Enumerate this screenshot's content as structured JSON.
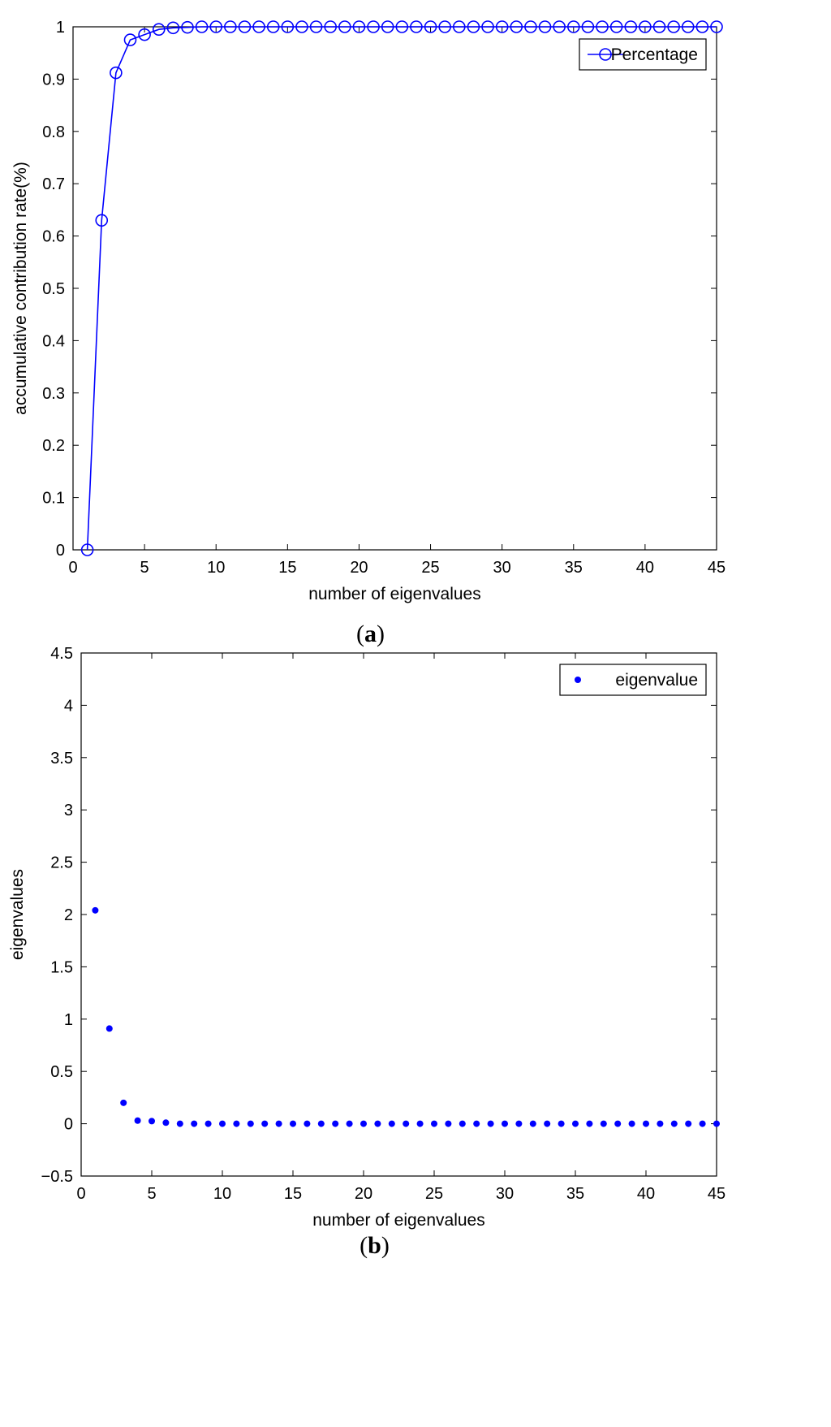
{
  "chart_data": [
    {
      "type": "line",
      "panel_label": "(a)",
      "xlabel": "number of eigenvalues",
      "ylabel": "accumulative contribution rate(%)",
      "xlim": [
        0,
        45
      ],
      "ylim": [
        0,
        1
      ],
      "xticks": [
        0,
        5,
        10,
        15,
        20,
        25,
        30,
        35,
        40,
        45
      ],
      "yticks": [
        0,
        0.1,
        0.2,
        0.3,
        0.4,
        0.5,
        0.6,
        0.7,
        0.8,
        0.9,
        1
      ],
      "grid": false,
      "legend_position": "top-right",
      "marker": "circle",
      "color": "#0000ff",
      "series": [
        {
          "name": "Percentage",
          "x": [
            1,
            2,
            3,
            4,
            5,
            6,
            7,
            8,
            9,
            10,
            11,
            12,
            13,
            14,
            15,
            16,
            17,
            18,
            19,
            20,
            21,
            22,
            23,
            24,
            25,
            26,
            27,
            28,
            29,
            30,
            31,
            32,
            33,
            34,
            35,
            36,
            37,
            38,
            39,
            40,
            41,
            42,
            43,
            44,
            45
          ],
          "values": [
            0,
            0.63,
            0.912,
            0.975,
            0.985,
            0.995,
            0.998,
            0.999,
            1,
            1,
            1,
            1,
            1,
            1,
            1,
            1,
            1,
            1,
            1,
            1,
            1,
            1,
            1,
            1,
            1,
            1,
            1,
            1,
            1,
            1,
            1,
            1,
            1,
            1,
            1,
            1,
            1,
            1,
            1,
            1,
            1,
            1,
            1,
            1,
            1
          ]
        }
      ]
    },
    {
      "type": "scatter",
      "panel_label": "(b)",
      "xlabel": "number of eigenvalues",
      "ylabel": "eigenvalues",
      "xlim": [
        0,
        45
      ],
      "ylim": [
        -0.5,
        4.5
      ],
      "xticks": [
        0,
        5,
        10,
        15,
        20,
        25,
        30,
        35,
        40,
        45
      ],
      "yticks": [
        -0.5,
        0,
        0.5,
        1,
        1.5,
        2,
        2.5,
        3,
        3.5,
        4,
        4.5
      ],
      "grid": false,
      "legend_position": "top-right",
      "marker": "dot",
      "color": "#0000ff",
      "series": [
        {
          "name": "eigenvalue",
          "x": [
            1,
            2,
            3,
            4,
            5,
            6,
            7,
            8,
            9,
            10,
            11,
            12,
            13,
            14,
            15,
            16,
            17,
            18,
            19,
            20,
            21,
            22,
            23,
            24,
            25,
            26,
            27,
            28,
            29,
            30,
            31,
            32,
            33,
            34,
            35,
            36,
            37,
            38,
            39,
            40,
            41,
            42,
            43,
            44,
            45
          ],
          "values": [
            2.04,
            0.91,
            0.2,
            0.03,
            0.025,
            0.01,
            0,
            0,
            0,
            0,
            0,
            0,
            0,
            0,
            0,
            0,
            0,
            0,
            0,
            0,
            0,
            0,
            0,
            0,
            0,
            0,
            0,
            0,
            0,
            0,
            0,
            0,
            0,
            0,
            0,
            0,
            0,
            0,
            0,
            0,
            0,
            0,
            0,
            0,
            0
          ]
        }
      ]
    }
  ]
}
